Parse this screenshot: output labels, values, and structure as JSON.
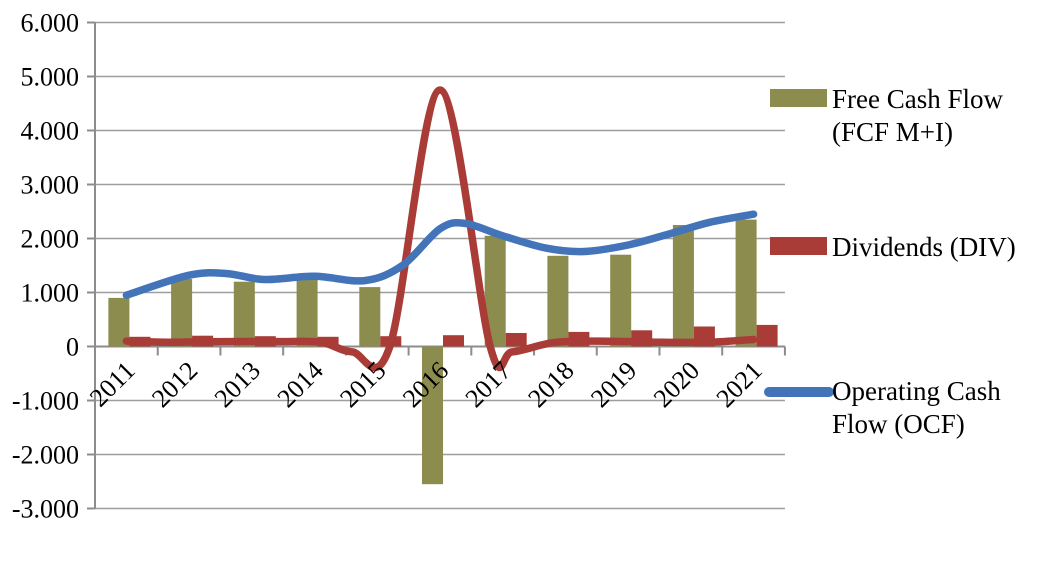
{
  "chart_data": {
    "type": "combo",
    "title": "",
    "categories": [
      "2011",
      "2012",
      "2013",
      "2014",
      "2015",
      "2016",
      "2017",
      "2018",
      "2019",
      "2020",
      "2021"
    ],
    "y_axis": {
      "tick_labels": [
        "6.000",
        "5.000",
        "4.000",
        "3.000",
        "2.000",
        "1.000",
        "0",
        "-1.000",
        "-2.000",
        "-3.000"
      ],
      "tick_values": [
        6,
        5,
        4,
        3,
        2,
        1,
        0,
        -1,
        -2,
        -3
      ],
      "ylim": [
        -3,
        6
      ],
      "grid": true
    },
    "legend_position": "right",
    "series": [
      {
        "id": "fcf",
        "name": "Free Cash Flow (FCF M+I)",
        "type": "bar",
        "color": "#8B8C4E",
        "values": [
          0.9,
          1.25,
          1.2,
          1.27,
          1.1,
          -2.55,
          2.05,
          1.68,
          1.7,
          2.25,
          2.35
        ]
      },
      {
        "id": "div",
        "name": "Dividends (DIV)",
        "type": "bar",
        "color": "#A93C36",
        "values": [
          0.18,
          0.2,
          0.19,
          0.18,
          0.19,
          0.21,
          0.25,
          0.27,
          0.3,
          0.37,
          0.4
        ]
      },
      {
        "id": "red-smooth-line",
        "name": "",
        "type": "line",
        "smooth": true,
        "color": "#A93C36",
        "points": [
          [
            0,
            0.1
          ],
          [
            0.7,
            0.08
          ],
          [
            1.5,
            0.09
          ],
          [
            2.5,
            0.09
          ],
          [
            3.1,
            0.08
          ],
          [
            3.6,
            -0.1
          ],
          [
            4.2,
            0
          ],
          [
            5,
            4.75
          ],
          [
            5.8,
            0
          ],
          [
            6.15,
            -0.1
          ],
          [
            6.8,
            0.07
          ],
          [
            7.5,
            0.1
          ],
          [
            8.5,
            0.08
          ],
          [
            9.3,
            0.08
          ],
          [
            10,
            0.13
          ]
        ]
      },
      {
        "id": "ocf",
        "name": "Operating Cash Flow (OCF)",
        "type": "line",
        "smooth": true,
        "color": "#4374B9",
        "points": [
          [
            0,
            0.95
          ],
          [
            1,
            1.32
          ],
          [
            1.6,
            1.35
          ],
          [
            2.2,
            1.24
          ],
          [
            3,
            1.3
          ],
          [
            3.8,
            1.22
          ],
          [
            4.4,
            1.5
          ],
          [
            5,
            2.18
          ],
          [
            5.4,
            2.28
          ],
          [
            6,
            2.05
          ],
          [
            6.7,
            1.82
          ],
          [
            7.3,
            1.76
          ],
          [
            8,
            1.88
          ],
          [
            8.7,
            2.1
          ],
          [
            9.3,
            2.3
          ],
          [
            10,
            2.45
          ]
        ]
      }
    ]
  },
  "legend": {
    "items": [
      {
        "swatch": "bar",
        "color": "#8B8C4E",
        "lines": [
          "Free Cash Flow",
          "(FCF M+I)"
        ]
      },
      {
        "swatch": "bar",
        "color": "#A93C36",
        "lines": [
          "Dividends (DIV)"
        ]
      },
      {
        "swatch": "line",
        "color": "#4374B9",
        "lines": [
          "Operating Cash",
          "Flow (OCF)"
        ]
      }
    ]
  },
  "colors": {
    "background": "#FFFFFF",
    "gridline": "#9E9E9E",
    "axis": "#8C8C8C",
    "text": "#000000"
  }
}
